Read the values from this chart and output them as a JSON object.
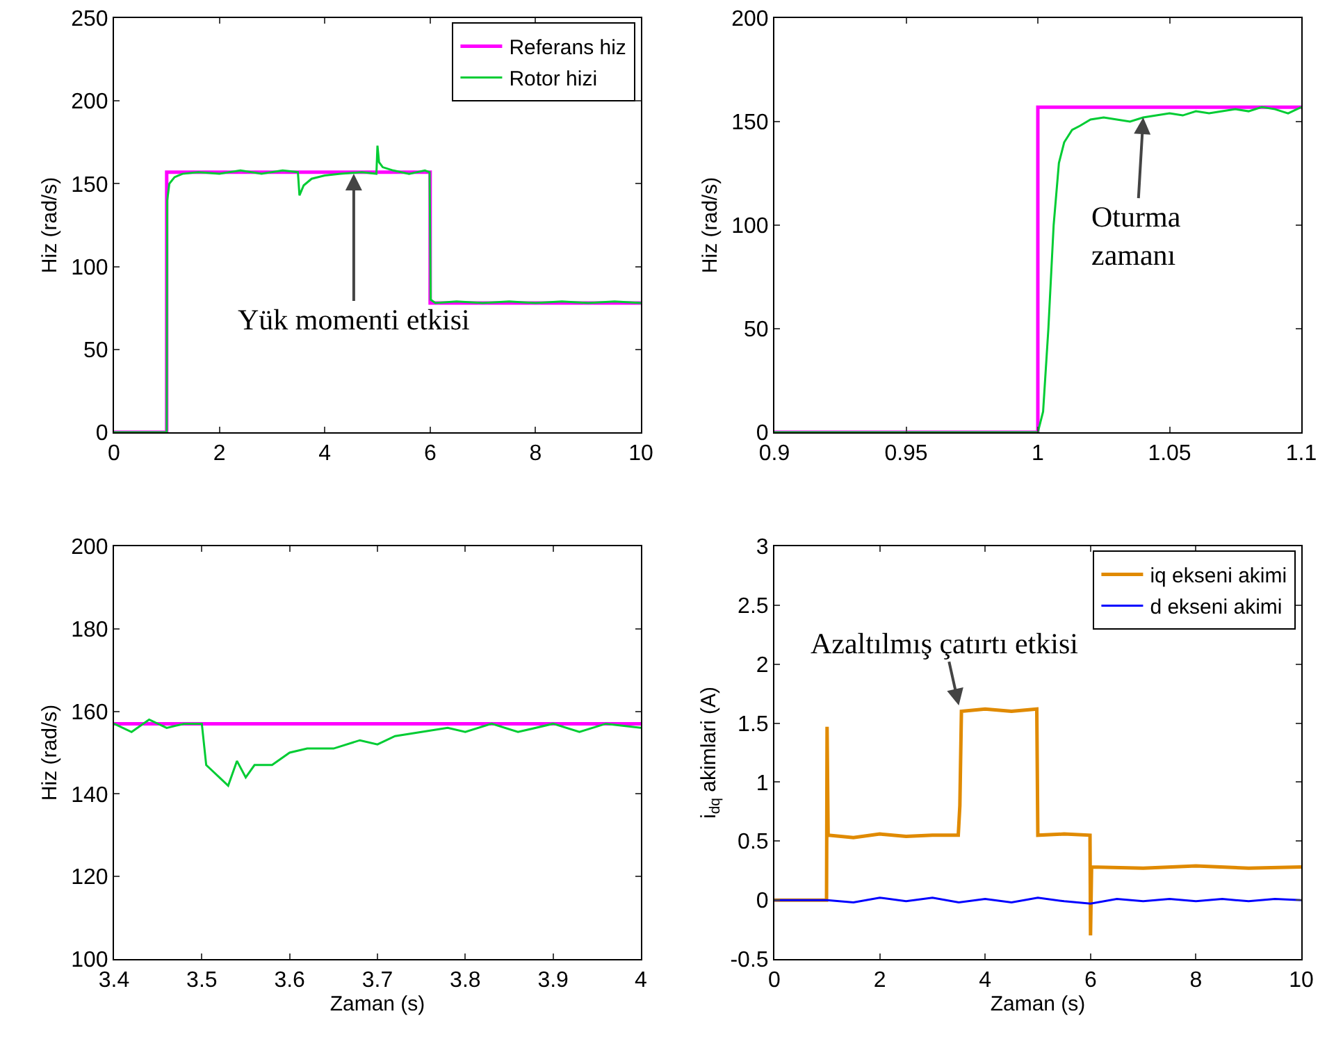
{
  "chart_data": [
    {
      "type": "line",
      "ylabel": "Hiz (rad/s)",
      "xlim": [
        0,
        10
      ],
      "xticks": [
        0,
        2,
        4,
        6,
        8,
        10
      ],
      "ylim": [
        0,
        250
      ],
      "yticks": [
        0,
        50,
        100,
        150,
        200,
        250
      ],
      "legend": "top right",
      "annotations": [
        {
          "text": "Yük momenti etkisi",
          "x": 4.55,
          "y": 156
        }
      ],
      "series": [
        {
          "name": "Referans hiz",
          "color": "#ff00ff",
          "x": [
            0,
            1,
            1,
            6,
            6,
            10
          ],
          "values": [
            0,
            0,
            157,
            157,
            78,
            78
          ]
        },
        {
          "name": "Rotor hizi",
          "color": "#00cc33",
          "x": [
            0,
            0.99,
            1.0,
            1.01,
            1.05,
            1.15,
            1.3,
            1.6,
            2,
            2.4,
            2.8,
            3.2,
            3.49,
            3.52,
            3.6,
            3.75,
            4,
            4.3,
            4.7,
            4.98,
            5.0,
            5.03,
            5.1,
            5.3,
            5.6,
            5.9,
            5.99,
            6.01,
            6.1,
            6.5,
            7,
            7.5,
            8,
            8.5,
            9,
            9.5,
            10
          ],
          "values": [
            0,
            0,
            0,
            140,
            150,
            154,
            156,
            157,
            156,
            158,
            156,
            158,
            157,
            143,
            149,
            153,
            155,
            156,
            157,
            156,
            173,
            163,
            160,
            158,
            156,
            158,
            157,
            80,
            78,
            79,
            78,
            79,
            78,
            79,
            78,
            79,
            78
          ]
        }
      ]
    },
    {
      "type": "line",
      "ylabel": "Hiz (rad/s)",
      "xlim": [
        0.9,
        1.1
      ],
      "xticks": [
        0.9,
        0.95,
        1,
        1.05,
        1.1
      ],
      "ylim": [
        0,
        200
      ],
      "yticks": [
        0,
        50,
        100,
        150,
        200
      ],
      "annotations": [
        {
          "text": "Oturma\nzamanı",
          "x": 1.04,
          "y": 152
        }
      ],
      "series": [
        {
          "color": "#ff00ff",
          "x": [
            0.9,
            1.0,
            1.0,
            1.1
          ],
          "values": [
            0,
            0,
            157,
            157
          ]
        },
        {
          "color": "#00cc33",
          "x": [
            0.9,
            1.0,
            1.002,
            1.004,
            1.006,
            1.008,
            1.01,
            1.013,
            1.016,
            1.02,
            1.025,
            1.03,
            1.035,
            1.04,
            1.045,
            1.05,
            1.055,
            1.06,
            1.065,
            1.07,
            1.075,
            1.08,
            1.085,
            1.09,
            1.095,
            1.1
          ],
          "values": [
            0,
            0,
            10,
            50,
            100,
            130,
            140,
            146,
            148,
            151,
            152,
            151,
            150,
            152,
            153,
            154,
            153,
            155,
            154,
            155,
            156,
            155,
            157,
            156,
            154,
            157
          ]
        }
      ]
    },
    {
      "type": "line",
      "xlabel": "Zaman (s)",
      "ylabel": "Hiz (rad/s)",
      "xlim": [
        3.4,
        4
      ],
      "xticks": [
        3.4,
        3.5,
        3.6,
        3.7,
        3.8,
        3.9,
        4
      ],
      "ylim": [
        100,
        200
      ],
      "yticks": [
        100,
        120,
        140,
        160,
        180,
        200
      ],
      "series": [
        {
          "color": "#ff00ff",
          "x": [
            3.4,
            4
          ],
          "values": [
            157,
            157
          ]
        },
        {
          "color": "#00cc33",
          "x": [
            3.4,
            3.42,
            3.44,
            3.46,
            3.48,
            3.5,
            3.505,
            3.51,
            3.52,
            3.53,
            3.54,
            3.55,
            3.56,
            3.58,
            3.6,
            3.62,
            3.65,
            3.68,
            3.7,
            3.72,
            3.75,
            3.78,
            3.8,
            3.83,
            3.86,
            3.9,
            3.93,
            3.96,
            4
          ],
          "values": [
            157,
            155,
            158,
            156,
            157,
            157,
            147,
            146,
            144,
            142,
            148,
            144,
            147,
            147,
            150,
            151,
            151,
            153,
            152,
            154,
            155,
            156,
            155,
            157,
            155,
            157,
            155,
            157,
            156
          ]
        }
      ]
    },
    {
      "type": "line",
      "xlabel": "Zaman (s)",
      "ylabel": "i$_{dq}$ akimlari (A)",
      "xlim": [
        0,
        10
      ],
      "xticks": [
        0,
        2,
        4,
        6,
        8,
        10
      ],
      "ylim": [
        -0.5,
        3
      ],
      "yticks": [
        -0.5,
        0,
        0.5,
        1,
        1.5,
        2,
        2.5,
        3
      ],
      "legend": "top right",
      "annotations": [
        {
          "text": "Azaltılmış çatırtı etkisi",
          "x": 3.5,
          "y": 1.65
        }
      ],
      "series": [
        {
          "name": "iq ekseni akimi",
          "color": "#e08a00",
          "x": [
            0,
            0.99,
            1.0,
            1.02,
            1.5,
            2,
            2.5,
            3,
            3.49,
            3.52,
            3.55,
            4,
            4.5,
            4.98,
            5.0,
            5.5,
            5.99,
            6.0,
            6.02,
            7,
            8,
            9,
            10
          ],
          "values": [
            0,
            0,
            1.47,
            0.55,
            0.53,
            0.56,
            0.54,
            0.55,
            0.55,
            0.8,
            1.6,
            1.62,
            1.6,
            1.62,
            0.55,
            0.56,
            0.55,
            -0.3,
            0.28,
            0.27,
            0.29,
            0.27,
            0.28
          ]
        },
        {
          "name": "d ekseni akimi",
          "color": "#0000ff",
          "x": [
            0,
            1,
            1.5,
            2,
            2.5,
            3,
            3.5,
            4,
            4.5,
            5,
            5.5,
            6,
            6.5,
            7,
            7.5,
            8,
            8.5,
            9,
            9.5,
            10
          ],
          "values": [
            0,
            0,
            -0.02,
            0.02,
            -0.01,
            0.02,
            -0.02,
            0.01,
            -0.02,
            0.02,
            -0.01,
            -0.03,
            0.01,
            -0.01,
            0.01,
            -0.01,
            0.01,
            -0.01,
            0.01,
            0
          ]
        }
      ]
    }
  ]
}
